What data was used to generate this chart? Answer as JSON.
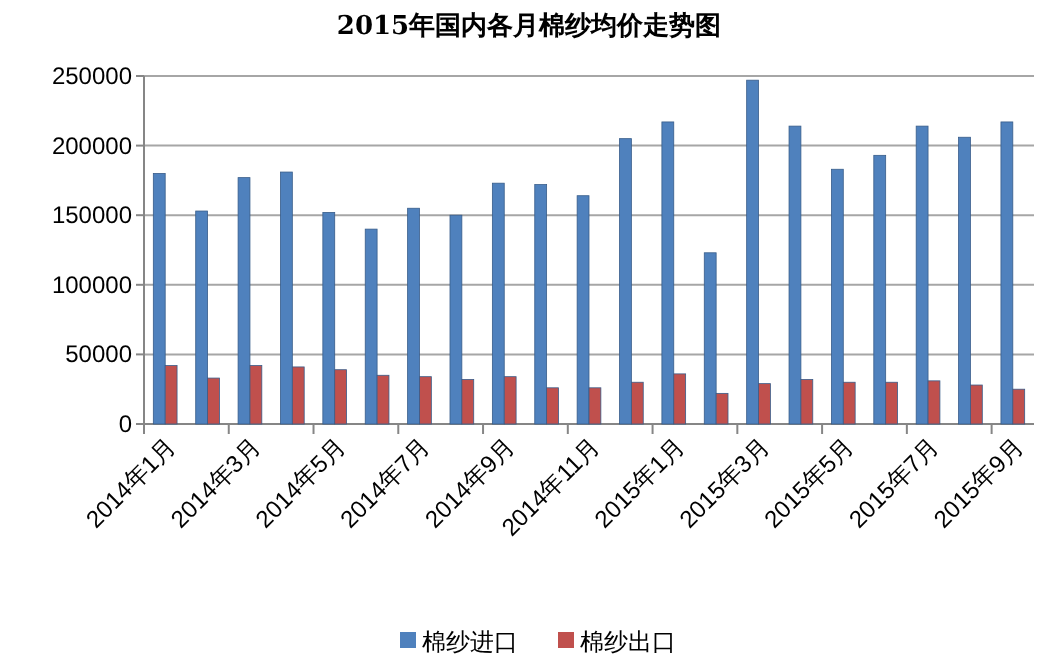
{
  "chart_data": {
    "type": "bar",
    "title": "2015年国内各月棉纱均价走势图",
    "categories": [
      "2014年1月",
      null,
      "2014年3月",
      null,
      "2014年5月",
      null,
      "2014年7月",
      null,
      "2014年9月",
      null,
      "2014年11月",
      null,
      "2015年1月",
      null,
      "2015年3月",
      null,
      "2015年5月",
      null,
      "2015年7月",
      null,
      "2015年9月"
    ],
    "series": [
      {
        "name": "棉纱进口",
        "color": "#4f81bd",
        "values": [
          180000,
          153000,
          177000,
          181000,
          152000,
          140000,
          155000,
          150000,
          173000,
          172000,
          164000,
          205000,
          217000,
          123000,
          247000,
          214000,
          183000,
          193000,
          214000,
          206000,
          217000
        ]
      },
      {
        "name": "棉纱出口",
        "color": "#c0504d",
        "values": [
          42000,
          33000,
          42000,
          41000,
          39000,
          35000,
          34000,
          32000,
          34000,
          26000,
          26000,
          30000,
          36000,
          22000,
          29000,
          32000,
          30000,
          30000,
          31000,
          28000,
          25000
        ]
      }
    ],
    "ylim": [
      0,
      250000
    ],
    "yticks": [
      0,
      50000,
      100000,
      150000,
      200000,
      250000
    ],
    "grid": "y",
    "legend": "bottom"
  }
}
